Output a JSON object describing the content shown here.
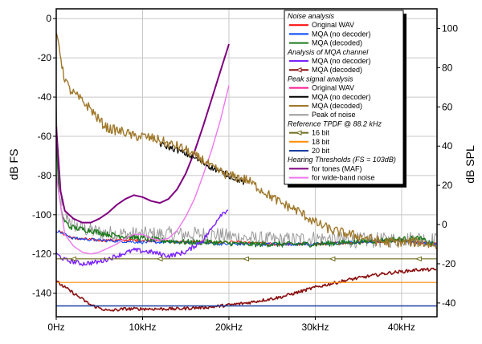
{
  "chart_data": {
    "type": "line",
    "title": "",
    "xlabel": "",
    "ylabel": "dB FS",
    "y2label": "dB SPL",
    "xlim": [
      0,
      44100
    ],
    "ylim": [
      -152,
      5
    ],
    "y2lim": [
      -47,
      110
    ],
    "x_ticks": [
      {
        "value": 0,
        "label": "0Hz"
      },
      {
        "value": 10000,
        "label": "10kHz"
      },
      {
        "value": 20000,
        "label": "20kHz"
      },
      {
        "value": 30000,
        "label": "30kHz"
      },
      {
        "value": 40000,
        "label": "40kHz"
      }
    ],
    "y_ticks": [
      0,
      -20,
      -40,
      -60,
      -80,
      -100,
      -120,
      -140
    ],
    "y2_ticks": [
      100,
      80,
      60,
      40,
      20,
      0,
      -20,
      -40
    ],
    "grid": true,
    "legend_position": "top-right",
    "legend": [
      {
        "kind": "header",
        "text": "Noise analysis"
      },
      {
        "kind": "entry",
        "text": "Original WAV",
        "color": "#ff0000",
        "marker": "none"
      },
      {
        "kind": "entry",
        "text": "MQA (no decoder)",
        "color": "#0044ff",
        "marker": "none"
      },
      {
        "kind": "entry",
        "text": "MQA (decoded)",
        "color": "#1a7a1a",
        "marker": "none"
      },
      {
        "kind": "header",
        "text": "Analysis of MQA channel"
      },
      {
        "kind": "entry",
        "text": "MQA (no decoder)",
        "color": "#7b22ff",
        "marker": "none"
      },
      {
        "kind": "entry",
        "text": "MQA (decoded)",
        "color": "#8b0f0f",
        "marker": "triangle"
      },
      {
        "kind": "header",
        "text": "Peak signal analysis"
      },
      {
        "kind": "entry",
        "text": "Original WAV",
        "color": "#ff1493",
        "marker": "none"
      },
      {
        "kind": "entry",
        "text": "MQA (no decoder)",
        "color": "#000000",
        "marker": "none"
      },
      {
        "kind": "entry",
        "text": "MQA (decoded)",
        "color": "#a0782a",
        "marker": "none"
      },
      {
        "kind": "entry",
        "text": "Peak of noise",
        "color": "#9a9a9a",
        "marker": "none"
      },
      {
        "kind": "header",
        "text": "Reference TPDF @ 88.2 kHz"
      },
      {
        "kind": "entry",
        "text": "16 bit",
        "color": "#6b6b1a",
        "marker": "triangle"
      },
      {
        "kind": "entry",
        "text": "18 bit",
        "color": "#ff8c00",
        "marker": "none"
      },
      {
        "kind": "entry",
        "text": "20 bit",
        "color": "#1a3fa0",
        "marker": "none"
      },
      {
        "kind": "header",
        "text": "Hearing Thresholds (FS = 103dB)"
      },
      {
        "kind": "entry",
        "text": "for tones (MAF)",
        "color": "#800080",
        "marker": "none"
      },
      {
        "kind": "entry",
        "text": "for wide-band noise",
        "color": "#ee77ee",
        "marker": "none"
      }
    ],
    "series": [
      {
        "name": "Peak of noise",
        "color": "#9a9a9a",
        "width": 1,
        "noise": 4,
        "x": [
          0,
          300,
          1000,
          2000,
          3000,
          5000,
          8000,
          10000,
          14000,
          18000,
          22000,
          26000,
          30000,
          34000,
          38000,
          42000,
          44100
        ],
        "y": [
          -45,
          -85,
          -100,
          -105,
          -107,
          -109,
          -110,
          -110,
          -110,
          -110,
          -112,
          -113,
          -112,
          -113,
          -113,
          -112,
          -113
        ]
      },
      {
        "name": "Noise analysis — Original WAV",
        "color": "#ff0000",
        "width": 1,
        "noise": 0.8,
        "x": [
          0,
          2000,
          5000,
          10000,
          15000,
          20000,
          25000,
          30000,
          35000,
          40000,
          44100
        ],
        "y": [
          -108,
          -112,
          -113,
          -113,
          -114,
          -114,
          -115,
          -115,
          -114,
          -113,
          -115
        ]
      },
      {
        "name": "Noise analysis — MQA (no decoder)",
        "color": "#0044ff",
        "width": 1,
        "noise": 0.8,
        "x": [
          0,
          2000,
          5000,
          10000,
          15000,
          20000,
          25000,
          30000,
          35000,
          40000,
          44100
        ],
        "y": [
          -108,
          -112,
          -113,
          -114,
          -114,
          -115,
          -115,
          -115,
          -114,
          -113,
          -115
        ]
      },
      {
        "name": "Noise analysis — MQA (decoded)",
        "color": "#1a7a1a",
        "width": 1.4,
        "noise": 1.4,
        "x": [
          0,
          300,
          800,
          1500,
          2500,
          4000,
          6000,
          8000,
          10000,
          12000,
          15000,
          18000,
          22000,
          26000,
          30000,
          34000,
          38000,
          42000,
          44100
        ],
        "y": [
          -60,
          -90,
          -102,
          -106,
          -107,
          -108,
          -110,
          -111,
          -112,
          -113,
          -114,
          -114,
          -115,
          -115,
          -115,
          -114,
          -113,
          -112,
          -116
        ]
      },
      {
        "name": "Analysis of MQA channel — MQA (no decoder)",
        "color": "#7b22ff",
        "width": 1.4,
        "noise": 1.2,
        "x": [
          0,
          1000,
          3000,
          5000,
          7000,
          9000,
          11000,
          13000,
          15000,
          17000,
          18000,
          19000,
          20000
        ],
        "y": [
          -120,
          -123,
          -125,
          -124,
          -121,
          -118,
          -119,
          -121,
          -119,
          -113,
          -107,
          -100,
          -97
        ]
      },
      {
        "name": "Analysis of MQA channel — MQA (decoded)",
        "color": "#8b0f0f",
        "width": 1.6,
        "noise": 0.8,
        "x": [
          0,
          1000,
          2000,
          4000,
          6000,
          8000,
          10000,
          14000,
          18000,
          22000,
          26000,
          30000,
          34000,
          38000,
          42000,
          44100
        ],
        "y": [
          -134,
          -137,
          -140,
          -146,
          -149,
          -148,
          -148,
          -148,
          -147,
          -145,
          -142,
          -137,
          -133,
          -130,
          -128,
          -128
        ]
      },
      {
        "name": "Reference TPDF 16 bit",
        "color": "#6b6b1a",
        "width": 1.2,
        "noise": 0,
        "x": [
          0,
          44100
        ],
        "y": [
          -122.5,
          -122.5
        ]
      },
      {
        "name": "Reference TPDF 18 bit",
        "color": "#ff8c00",
        "width": 1.2,
        "noise": 0,
        "x": [
          0,
          44100
        ],
        "y": [
          -134.5,
          -134.5
        ]
      },
      {
        "name": "Reference TPDF 20 bit",
        "color": "#1a3fa0",
        "width": 1.4,
        "noise": 0,
        "x": [
          0,
          44100
        ],
        "y": [
          -146.5,
          -146.5
        ]
      },
      {
        "name": "Hearing threshold — for tones (MAF)",
        "color": "#800080",
        "width": 2,
        "noise": 0,
        "x": [
          0,
          500,
          1000,
          2000,
          3000,
          4000,
          5000,
          6000,
          7000,
          8000,
          9000,
          10000,
          11000,
          12000,
          13000,
          14000,
          15000,
          16000,
          17000,
          18000,
          19000,
          20000
        ],
        "y": [
          -55,
          -88,
          -98,
          -102,
          -104,
          -104,
          -102,
          -99,
          -95,
          -92,
          -90,
          -91,
          -93,
          -94,
          -92,
          -87,
          -79,
          -68,
          -55,
          -41,
          -27,
          -13
        ]
      },
      {
        "name": "Hearing threshold — for wide-band noise",
        "color": "#ee77ee",
        "width": 1.4,
        "noise": 0,
        "x": [
          0,
          1000,
          2000,
          3000,
          4000,
          5000,
          6000,
          7000,
          8000,
          9000,
          10000,
          11000,
          12000,
          13000,
          14000,
          15000,
          16000,
          17000,
          18000,
          19000,
          20000
        ],
        "y": [
          -80,
          -110,
          -116,
          -119,
          -120,
          -119,
          -117,
          -115,
          -112,
          -110,
          -110,
          -112,
          -113,
          -112,
          -108,
          -101,
          -92,
          -80,
          -67,
          -52,
          -34
        ]
      },
      {
        "name": "Peak — MQA (no decoder)",
        "color": "#000000",
        "width": 1.2,
        "noise": 1.5,
        "x": [
          12000,
          14000,
          16000,
          18000,
          20000,
          22000
        ],
        "y": [
          -64,
          -67,
          -71,
          -76,
          -80,
          -84
        ]
      },
      {
        "name": "Peak — MQA (decoded)",
        "color": "#a0782a",
        "width": 1.4,
        "noise": 2.5,
        "x": [
          0,
          300,
          800,
          1500,
          2000,
          3000,
          4000,
          5000,
          6000,
          7000,
          8000,
          9000,
          10000,
          11000,
          12000,
          13000,
          14000,
          15000,
          16000,
          17000,
          18000,
          19000,
          20000,
          22000,
          24000,
          26000,
          28000,
          30000,
          32000,
          34000,
          36000,
          38000,
          40000,
          42000,
          44100
        ],
        "y": [
          -8,
          -12,
          -28,
          -36,
          -38,
          -42,
          -46,
          -52,
          -56,
          -57,
          -58,
          -60,
          -60,
          -61,
          -62,
          -64,
          -65,
          -67,
          -70,
          -72,
          -76,
          -78,
          -80,
          -82,
          -88,
          -94,
          -98,
          -104,
          -108,
          -110,
          -112,
          -114,
          -114,
          -114,
          -116
        ]
      }
    ]
  }
}
